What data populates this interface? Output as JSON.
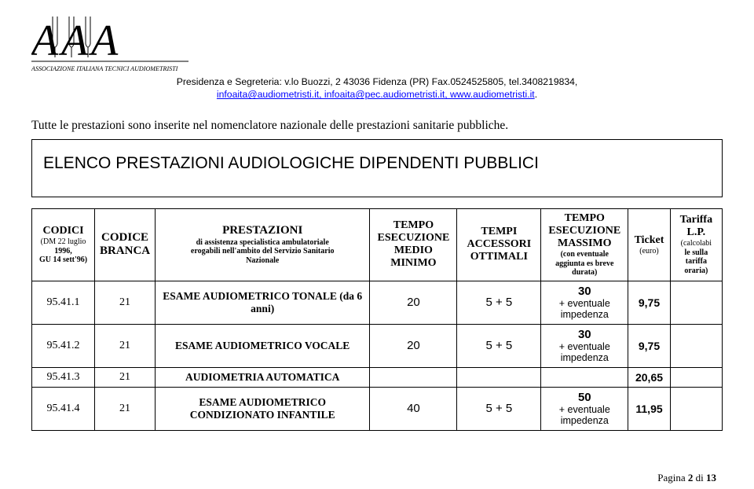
{
  "header": {
    "line1_prefix": "Presidenza e Segreteria: v.lo Buozzi, 2 43036 Fidenza (PR) Fax.0524525805, tel.3408219834,",
    "links_text": "infoaita@audiometristi.it, infoaita@pec.audiometristi.it, www.audiometristi.it",
    "links_suffix": "."
  },
  "intro": "Tutte le prestazioni sono inserite nel nomenclatore nazionale delle prestazioni sanitarie pubbliche.",
  "title": "ELENCO PRESTAZIONI  AUDIOLOGICHE DIPENDENTI  PUBBLICI",
  "columns": {
    "codici_main": "CODICI",
    "codici_sub1": "(DM 22 luglio",
    "codici_sub2": "1996,",
    "codici_sub3": "GU 14 sett'96)",
    "branca_l1": "CODICE",
    "branca_l2": "BRANCA",
    "prest_main": "PRESTAZIONI",
    "prest_sub1": "di assistenza specialistica ambulatoriale",
    "prest_sub2": "erogabili nell'ambito del Servizio Sanitario",
    "prest_sub3": "Nazionale",
    "minimo_l1": "TEMPO",
    "minimo_l2": "ESECUZIONE",
    "minimo_l3": "MEDIO",
    "minimo_l4": "MINIMO",
    "accessori_l1": "TEMPI",
    "accessori_l2": "ACCESSORI",
    "accessori_l3": "OTTIMALI",
    "massimo_l1": "TEMPO",
    "massimo_l2": "ESECUZIONE",
    "massimo_l3": "MASSIMO",
    "massimo_sub1": "(con eventuale",
    "massimo_sub2": "aggiunta es breve",
    "massimo_sub3": "durata)",
    "ticket_main": "Ticket",
    "ticket_sub": "(euro)",
    "tariffa_l1": "Tariffa",
    "tariffa_l2": "L.P.",
    "tariffa_sub1": "(calcolabi",
    "tariffa_sub2": "le sulla",
    "tariffa_sub3": "tariffa",
    "tariffa_sub4": "oraria)"
  },
  "rows": [
    {
      "codice": "95.41.1",
      "branca": "21",
      "prest": "ESAME AUDIOMETRICO TONALE (da 6 anni)",
      "minimo": "20",
      "accessori": "5 + 5",
      "massimo_big": "30",
      "massimo_small": "+ eventuale impedenza",
      "ticket": "9,75",
      "tariffa": ""
    },
    {
      "codice": "95.41.2",
      "branca": "21",
      "prest": "ESAME AUDIOMETRICO VOCALE",
      "minimo": "20",
      "accessori": "5 + 5",
      "massimo_big": "30",
      "massimo_small": "+ eventuale impedenza",
      "ticket": "9,75",
      "tariffa": ""
    },
    {
      "codice": "95.41.3",
      "branca": "21",
      "prest": "AUDIOMETRIA AUTOMATICA",
      "minimo": "",
      "accessori": "",
      "massimo_big": "",
      "massimo_small": "",
      "ticket": "20,65",
      "tariffa": ""
    },
    {
      "codice": "95.41.4",
      "branca": "21",
      "prest": "ESAME AUDIOMETRICO CONDIZIONATO INFANTILE",
      "minimo": "40",
      "accessori": "5 + 5",
      "massimo_big": "50",
      "massimo_small": "+ eventuale impedenza",
      "ticket": "11,95",
      "tariffa": ""
    }
  ],
  "page_num_prefix": "Pagina ",
  "page_num_bold": "2",
  "page_num_mid": " di ",
  "page_num_total": "13",
  "logo_sub": "ASSOCIAZIONE ITALIANA TECNICI AUDIOMETRISTI"
}
